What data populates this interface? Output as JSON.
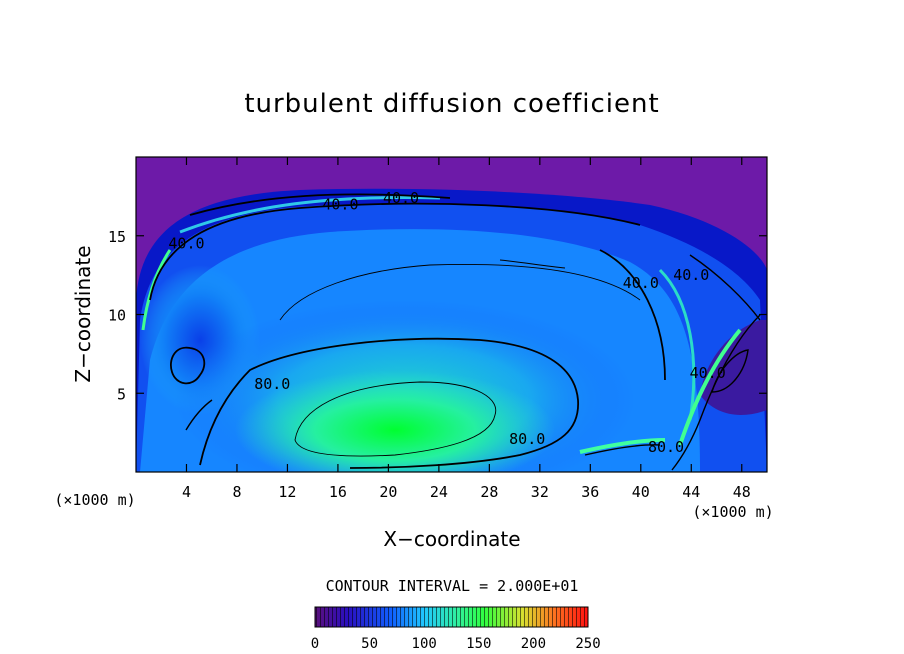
{
  "chart_data": {
    "type": "heatmap",
    "title": "turbulent diffusion coefficient",
    "xlabel": "X−coordinate",
    "ylabel": "Z−coordinate",
    "x_unit_left": "(×1000 m)",
    "x_unit_right": "(×1000 m)",
    "xlim": [
      0,
      50
    ],
    "ylim": [
      0,
      20
    ],
    "x_ticks": [
      4,
      8,
      12,
      16,
      20,
      24,
      28,
      32,
      36,
      40,
      44,
      48
    ],
    "x_tick_labels": [
      "4",
      "8",
      "12",
      "16",
      "20",
      "24",
      "28",
      "32",
      "36",
      "40",
      "44",
      "48"
    ],
    "y_ticks": [
      5,
      10,
      15
    ],
    "y_tick_labels": [
      "5",
      "10",
      "15"
    ],
    "contour_interval_label": "CONTOUR INTERVAL = 2.000E+01",
    "contour_interval": 20,
    "contour_labels": [
      {
        "text": "40.0",
        "x": 4.0,
        "z": 14.5
      },
      {
        "text": "40.0",
        "x": 16.2,
        "z": 17.0
      },
      {
        "text": "40.0",
        "x": 21.0,
        "z": 17.4
      },
      {
        "text": "40.0",
        "x": 40.0,
        "z": 12.0
      },
      {
        "text": "40.0",
        "x": 44.0,
        "z": 12.5
      },
      {
        "text": "40.0",
        "x": 45.3,
        "z": 6.3
      },
      {
        "text": "80.0",
        "x": 10.8,
        "z": 5.6
      },
      {
        "text": "80.0",
        "x": 31.0,
        "z": 2.1
      },
      {
        "text": "80.0",
        "x": 42.0,
        "z": 1.6
      }
    ],
    "colorbar": {
      "min": 0,
      "max": 250,
      "tick_labels": [
        "0",
        "50",
        "100",
        "150",
        "200",
        "250"
      ]
    },
    "colors": {
      "background_top": "#6d1aa8",
      "low": "#0000c8",
      "mid": "#1a7cff",
      "high": "#30f0a0",
      "peak": "#00ff40"
    },
    "grid": false
  }
}
